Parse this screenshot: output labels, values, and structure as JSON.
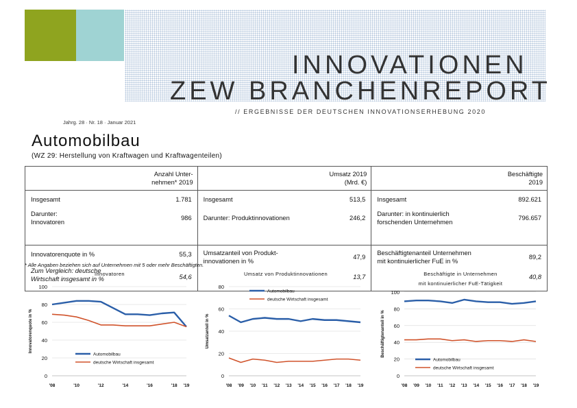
{
  "header": {
    "title_line1": "INNOVATIONEN",
    "title_line2": "ZEW BRANCHENREPORT",
    "subtitle": "// ERGEBNISSE DER DEUTSCHEN INNOVATIONSERHEBUNG 2020",
    "jahrgang": "Jahrg. 28 · Nr. 18 · Januar 2021",
    "colors": {
      "green_square": "#8fa41f",
      "teal_square": "#9fd3d3"
    }
  },
  "sector": {
    "title": "Automobilbau",
    "wz": "(WZ 29: Herstellung von Kraftwagen und Kraftwagenteilen)"
  },
  "key_table": {
    "col1": {
      "header_line1": "Anzahl Unter-",
      "header_line2": "nehmen* 2019",
      "rows": [
        {
          "label": "Insgesamt",
          "value": "1.781"
        },
        {
          "label_line1": "Darunter:",
          "label_line2": "Innovatoren",
          "value": "986"
        },
        {
          "label": "Innovatorenquote in %",
          "value": "55,3"
        },
        {
          "label_line1": "Zum Vergleich: deutsche",
          "label_line2": "Wirtschaft insgesamt in %",
          "value": "54,6"
        }
      ]
    },
    "col2": {
      "header_line1": "Umsatz 2019",
      "header_line2": "(Mrd. €)",
      "rows": [
        {
          "label": "Insgesamt",
          "value": "513,5"
        },
        {
          "label": "Darunter: Produktinnovationen",
          "value": "246,2"
        },
        {
          "label_line1": "Umsatzanteil von Produkt-",
          "label_line2": "innovationen in %",
          "value": "47,9"
        },
        {
          "value": "13,7"
        }
      ]
    },
    "col3": {
      "header_line1": "Beschäftigte",
      "header_line2": "2019",
      "rows": [
        {
          "label": "Insgesamt",
          "value": "892.621"
        },
        {
          "label_line1": "Darunter: in kontinuierlich",
          "label_line2": "forschenden Unternehmen",
          "value": "796.657"
        },
        {
          "label_line1": "Beschäftigtenanteil Unternehmen",
          "label_line2": "mit kontinuierlicher FuE in %",
          "value": "89,2"
        },
        {
          "value": "40,8"
        }
      ]
    }
  },
  "footnote": "* Alle Angaben beziehen sich auf Unternehmen mit 5 oder mehr Beschäftigten.",
  "chart_data": [
    {
      "type": "line",
      "title": "Innovatoren",
      "ylabel": "Innovatorenquote in %",
      "ylim": [
        0,
        100
      ],
      "yticks": [
        0,
        20,
        40,
        60,
        80,
        100
      ],
      "x": [
        2008,
        2009,
        2010,
        2011,
        2012,
        2013,
        2014,
        2015,
        2016,
        2017,
        2018,
        2019
      ],
      "xtick_labels": [
        "'08",
        "'10",
        "'12",
        "'14",
        "'16",
        "'18",
        "'19"
      ],
      "xtick_positions": [
        2008,
        2010,
        2012,
        2014,
        2016,
        2018,
        2019
      ],
      "legend_placement": "bottom-left",
      "grid": true,
      "series": [
        {
          "name": "Automobilbau",
          "color": "#2a5ea8",
          "values": [
            80,
            82,
            84,
            84,
            83,
            76,
            69,
            69,
            68,
            70,
            71,
            55
          ]
        },
        {
          "name": "deutsche Wirtschaft insgesamt",
          "color": "#d0522a",
          "values": [
            69,
            68,
            66,
            62,
            57,
            57,
            56,
            56,
            56,
            58,
            60,
            55
          ]
        }
      ]
    },
    {
      "type": "line",
      "title": "Umsatz von Produktinnovationen",
      "ylabel": "Umsatzanteil in %",
      "ylim": [
        0,
        80
      ],
      "yticks": [
        0,
        20,
        40,
        60,
        80
      ],
      "x": [
        2008,
        2009,
        2010,
        2011,
        2012,
        2013,
        2014,
        2015,
        2016,
        2017,
        2018,
        2019
      ],
      "xtick_labels": [
        "'08",
        "'09",
        "'10",
        "'11",
        "'12",
        "'13",
        "'14",
        "'15",
        "'16",
        "'17",
        "'18",
        "'19"
      ],
      "xtick_positions": [
        2008,
        2009,
        2010,
        2011,
        2012,
        2013,
        2014,
        2015,
        2016,
        2017,
        2018,
        2019
      ],
      "legend_placement": "top-left",
      "grid": true,
      "series": [
        {
          "name": "Automobilbau",
          "color": "#2a5ea8",
          "values": [
            54,
            48,
            51,
            52,
            51,
            51,
            49,
            51,
            50,
            50,
            49,
            48
          ]
        },
        {
          "name": "deutsche Wirtschaft insgesamt",
          "color": "#d0522a",
          "values": [
            16,
            12,
            15,
            14,
            12,
            13,
            13,
            13,
            14,
            15,
            15,
            14
          ]
        }
      ]
    },
    {
      "type": "line",
      "title": "Beschäftigte in Unternehmen",
      "subtitle": "mit kontinuierlicher FuE-Tätigkeit",
      "ylabel": "Beschäftigtenanteil in %",
      "ylim": [
        0,
        100
      ],
      "yticks": [
        0,
        20,
        40,
        60,
        80,
        100
      ],
      "x": [
        2008,
        2009,
        2010,
        2011,
        2012,
        2013,
        2014,
        2015,
        2016,
        2017,
        2018,
        2019
      ],
      "xtick_labels": [
        "'08",
        "'09",
        "'10",
        "'11",
        "'12",
        "'13",
        "'14",
        "'15",
        "'16",
        "'17",
        "'18",
        "'19"
      ],
      "xtick_positions": [
        2008,
        2009,
        2010,
        2011,
        2012,
        2013,
        2014,
        2015,
        2016,
        2017,
        2018,
        2019
      ],
      "legend_placement": "bottom-left",
      "grid": true,
      "series": [
        {
          "name": "Automobilbau",
          "color": "#2a5ea8",
          "values": [
            89,
            90,
            90,
            89,
            87,
            91,
            89,
            88,
            88,
            86,
            87,
            89
          ]
        },
        {
          "name": "deutsche Wirtschaft insgesamt",
          "color": "#d0522a",
          "values": [
            43,
            43,
            44,
            44,
            42,
            43,
            41,
            42,
            42,
            41,
            43,
            41
          ]
        }
      ]
    }
  ]
}
